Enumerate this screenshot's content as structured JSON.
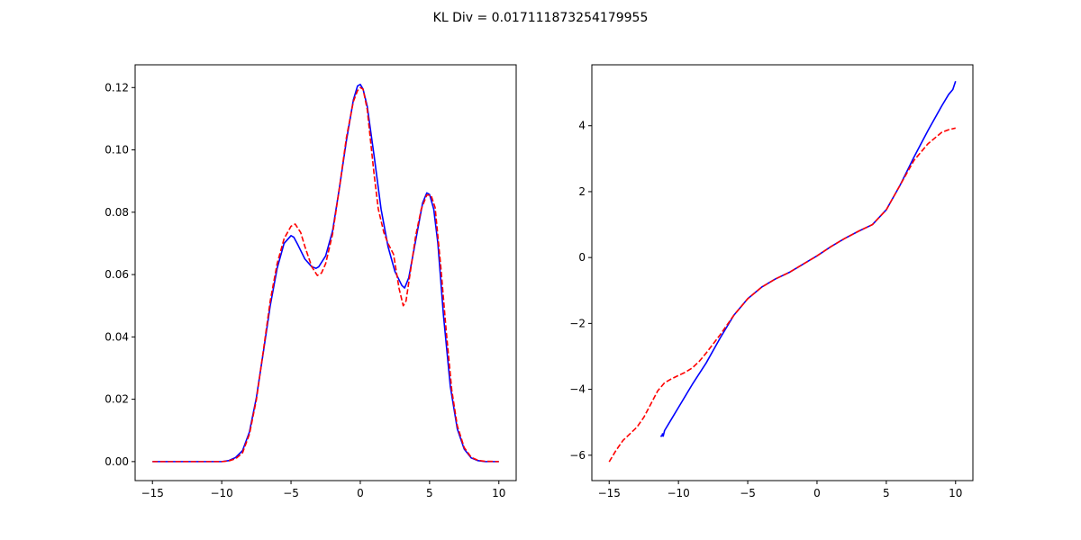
{
  "figure": {
    "title": "KL Div = 0.017111873254179955"
  },
  "chart_data": [
    {
      "type": "line",
      "title": "",
      "xlabel": "",
      "ylabel": "",
      "xlim": [
        -16.25,
        11.25
      ],
      "ylim": [
        -0.0061,
        0.1273
      ],
      "grid": false,
      "xticks": [
        -15,
        -10,
        -5,
        0,
        5,
        10
      ],
      "xtick_labels": [
        "−15",
        "−10",
        "−5",
        "0",
        "5",
        "10"
      ],
      "yticks": [
        0.0,
        0.02,
        0.04,
        0.06,
        0.08,
        0.1,
        0.12
      ],
      "ytick_labels": [
        "0.00",
        "0.02",
        "0.04",
        "0.06",
        "0.08",
        "0.10",
        "0.12"
      ],
      "series": [
        {
          "color": "#0000ff",
          "style": "solid",
          "x": [
            -15,
            -11,
            -10,
            -9.5,
            -9,
            -8.5,
            -8,
            -7.5,
            -7,
            -6.5,
            -6,
            -5.5,
            -5,
            -4.8,
            -4.5,
            -4,
            -3.5,
            -3.2,
            -3,
            -2.5,
            -2,
            -1.5,
            -1,
            -0.5,
            -0.2,
            0,
            0.2,
            0.5,
            1,
            1.5,
            2,
            2.5,
            3,
            3.2,
            3.5,
            4,
            4.5,
            4.8,
            5,
            5.3,
            5.6,
            6,
            6.5,
            7,
            7.5,
            8,
            8.5,
            9,
            10
          ],
          "y": [
            0.0,
            0.0,
            0.0,
            0.0003,
            0.0013,
            0.0035,
            0.0095,
            0.0205,
            0.035,
            0.05,
            0.062,
            0.07,
            0.0725,
            0.072,
            0.0695,
            0.065,
            0.0625,
            0.062,
            0.0625,
            0.066,
            0.074,
            0.088,
            0.103,
            0.116,
            0.1205,
            0.121,
            0.1195,
            0.114,
            0.098,
            0.081,
            0.069,
            0.061,
            0.0565,
            0.0557,
            0.059,
            0.071,
            0.083,
            0.0862,
            0.0857,
            0.081,
            0.07,
            0.047,
            0.024,
            0.0105,
            0.004,
            0.0012,
            0.0003,
            0.0,
            0.0
          ]
        },
        {
          "color": "#ff0000",
          "style": "dashed",
          "x": [
            -15,
            -11,
            -10,
            -9.5,
            -9,
            -8.5,
            -8,
            -7.5,
            -7,
            -6.5,
            -6,
            -5.5,
            -5,
            -4.7,
            -4.3,
            -4,
            -3.5,
            -3.1,
            -2.8,
            -2.5,
            -2,
            -1.5,
            -1,
            -0.5,
            -0.2,
            0,
            0.2,
            0.5,
            1,
            1.3,
            1.7,
            2,
            2.4,
            2.8,
            3.1,
            3.3,
            3.6,
            4,
            4.4,
            4.8,
            5.1,
            5.4,
            5.8,
            6.2,
            6.6,
            7,
            7.5,
            8,
            8.5,
            9,
            10
          ],
          "y": [
            0.0,
            0.0,
            0.0,
            0.0002,
            0.0009,
            0.0028,
            0.0088,
            0.0198,
            0.0355,
            0.0515,
            0.0635,
            0.0715,
            0.0755,
            0.0762,
            0.0735,
            0.069,
            0.0625,
            0.0597,
            0.0605,
            0.0635,
            0.073,
            0.088,
            0.104,
            0.1155,
            0.119,
            0.12,
            0.1195,
            0.113,
            0.092,
            0.081,
            0.0735,
            0.07,
            0.0665,
            0.0555,
            0.05,
            0.0515,
            0.0605,
            0.0725,
            0.081,
            0.0855,
            0.0855,
            0.0815,
            0.063,
            0.042,
            0.023,
            0.0115,
            0.0045,
            0.0014,
            0.0004,
            0.0001,
            0.0
          ]
        }
      ]
    },
    {
      "type": "line",
      "title": "",
      "xlabel": "",
      "ylabel": "",
      "xlim": [
        -16.25,
        11.25
      ],
      "ylim": [
        -6.77,
        5.85
      ],
      "grid": false,
      "xticks": [
        -15,
        -10,
        -5,
        0,
        5,
        10
      ],
      "xtick_labels": [
        "−15",
        "−10",
        "−5",
        "0",
        "5",
        "10"
      ],
      "yticks": [
        -6,
        -4,
        -2,
        0,
        2,
        4
      ],
      "ytick_labels": [
        "−6",
        "−4",
        "−2",
        "0",
        "2",
        "4"
      ],
      "series": [
        {
          "color": "#0000ff",
          "style": "solid",
          "x": [
            -11.3,
            -11.2,
            -11.15,
            -11.1,
            -11.0,
            -10.5,
            -10,
            -9,
            -8,
            -7,
            -6,
            -5,
            -4,
            -3,
            -2,
            -1,
            0,
            1,
            2,
            3,
            4,
            5,
            6,
            7,
            8,
            9,
            9.5,
            9.8,
            10
          ],
          "y": [
            -5.42,
            -5.42,
            -5.35,
            -5.42,
            -5.25,
            -4.9,
            -4.55,
            -3.85,
            -3.2,
            -2.45,
            -1.75,
            -1.25,
            -0.9,
            -0.65,
            -0.45,
            -0.2,
            0.05,
            0.33,
            0.58,
            0.8,
            1.0,
            1.45,
            2.2,
            3.05,
            3.85,
            4.6,
            4.95,
            5.1,
            5.35
          ]
        },
        {
          "color": "#ff0000",
          "style": "dashed",
          "x": [
            -15,
            -14.5,
            -14,
            -13.5,
            -13,
            -12.5,
            -12,
            -11.5,
            -11,
            -10.5,
            -10,
            -9.5,
            -9,
            -8.5,
            -8,
            -7,
            -6,
            -5,
            -4,
            -3,
            -2,
            -1,
            0,
            1,
            2,
            3,
            4,
            5,
            6,
            7,
            8,
            9,
            9.5,
            10
          ],
          "y": [
            -6.2,
            -5.85,
            -5.55,
            -5.35,
            -5.15,
            -4.85,
            -4.45,
            -4.05,
            -3.8,
            -3.68,
            -3.58,
            -3.48,
            -3.35,
            -3.15,
            -2.9,
            -2.35,
            -1.75,
            -1.25,
            -0.9,
            -0.65,
            -0.45,
            -0.2,
            0.05,
            0.33,
            0.58,
            0.8,
            1.0,
            1.45,
            2.2,
            2.95,
            3.45,
            3.8,
            3.88,
            3.93
          ]
        }
      ]
    }
  ]
}
